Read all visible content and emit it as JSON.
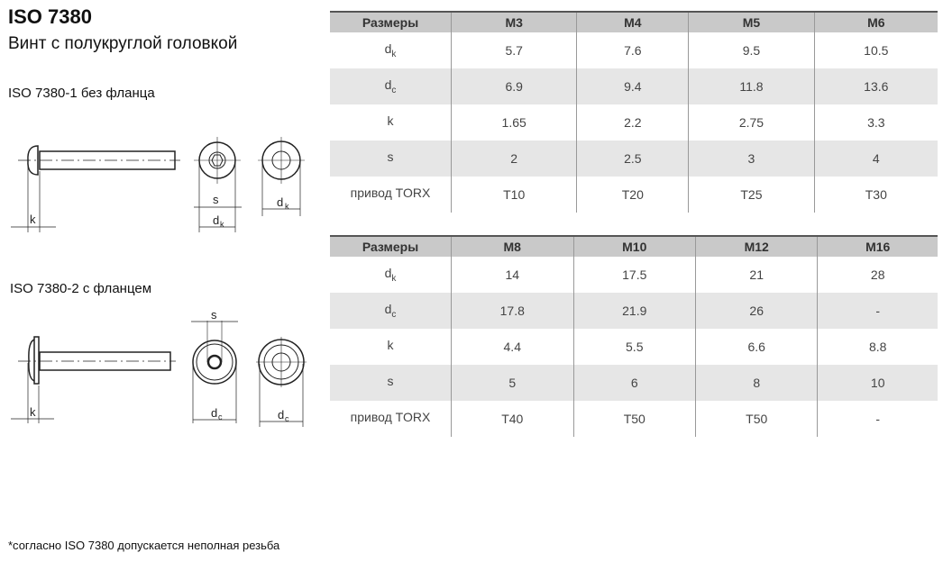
{
  "header": {
    "title": "ISO 7380",
    "subtitle": "Винт с полукруглой головкой"
  },
  "drawings": {
    "variant1_label": "ISO 7380-1 без фланца",
    "variant2_label": "ISO 7380-2 с фланцем",
    "dim_k": "k",
    "dim_s": "s",
    "dim_d": "d",
    "sub_k": "k",
    "sub_c": "c"
  },
  "table1": {
    "headers": [
      "Размеры",
      "M3",
      "M4",
      "M5",
      "M6"
    ],
    "rows": [
      {
        "label": "d",
        "sub": "k",
        "values": [
          "5.7",
          "7.6",
          "9.5",
          "10.5"
        ]
      },
      {
        "label": "d",
        "sub": "c",
        "values": [
          "6.9",
          "9.4",
          "11.8",
          "13.6"
        ]
      },
      {
        "label": "k",
        "sub": "",
        "values": [
          "1.65",
          "2.2",
          "2.75",
          "3.3"
        ]
      },
      {
        "label": "s",
        "sub": "",
        "values": [
          "2",
          "2.5",
          "3",
          "4"
        ]
      },
      {
        "label": "привод TORX",
        "sub": "",
        "values": [
          "T10",
          "T20",
          "T25",
          "T30"
        ]
      }
    ]
  },
  "table2": {
    "headers": [
      "Размеры",
      "M8",
      "M10",
      "M12",
      "M16"
    ],
    "rows": [
      {
        "label": "d",
        "sub": "k",
        "values": [
          "14",
          "17.5",
          "21",
          "28"
        ]
      },
      {
        "label": "d",
        "sub": "c",
        "values": [
          "17.8",
          "21.9",
          "26",
          "-"
        ]
      },
      {
        "label": "k",
        "sub": "",
        "values": [
          "4.4",
          "5.5",
          "6.6",
          "8.8"
        ]
      },
      {
        "label": "s",
        "sub": "",
        "values": [
          "5",
          "6",
          "8",
          "10"
        ]
      },
      {
        "label": "привод TORX",
        "sub": "",
        "values": [
          "T40",
          "T50",
          "T50",
          "-"
        ]
      }
    ]
  },
  "footnote": "*согласно ISO 7380 допускается неполная резьба"
}
